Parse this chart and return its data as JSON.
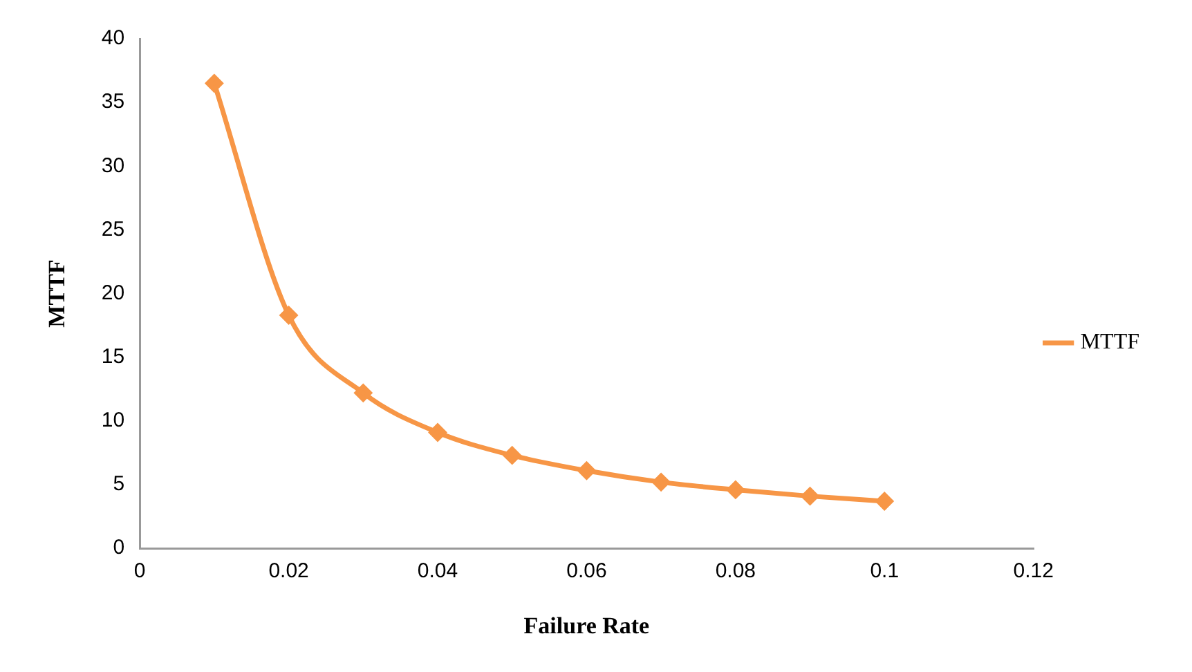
{
  "chart_data": {
    "type": "line",
    "xlabel": "Failure Rate",
    "ylabel": "MTTF",
    "x": [
      0.01,
      0.02,
      0.03,
      0.04,
      0.05,
      0.06,
      0.07,
      0.08,
      0.09,
      0.1
    ],
    "series": [
      {
        "name": "MTTF",
        "color": "#f79646",
        "values": [
          36.5,
          18.3,
          12.2,
          9.1,
          7.3,
          6.1,
          5.2,
          4.6,
          4.1,
          3.7
        ]
      }
    ],
    "xlim": [
      0,
      0.12
    ],
    "xticks": [
      0,
      0.02,
      0.04,
      0.06,
      0.08,
      0.1,
      0.12
    ],
    "ylim": [
      0,
      40
    ],
    "yticks": [
      0,
      5,
      10,
      15,
      20,
      25,
      30,
      35,
      40
    ],
    "grid": false,
    "legend": "right",
    "marker": "diamond",
    "line_style": "solid"
  }
}
